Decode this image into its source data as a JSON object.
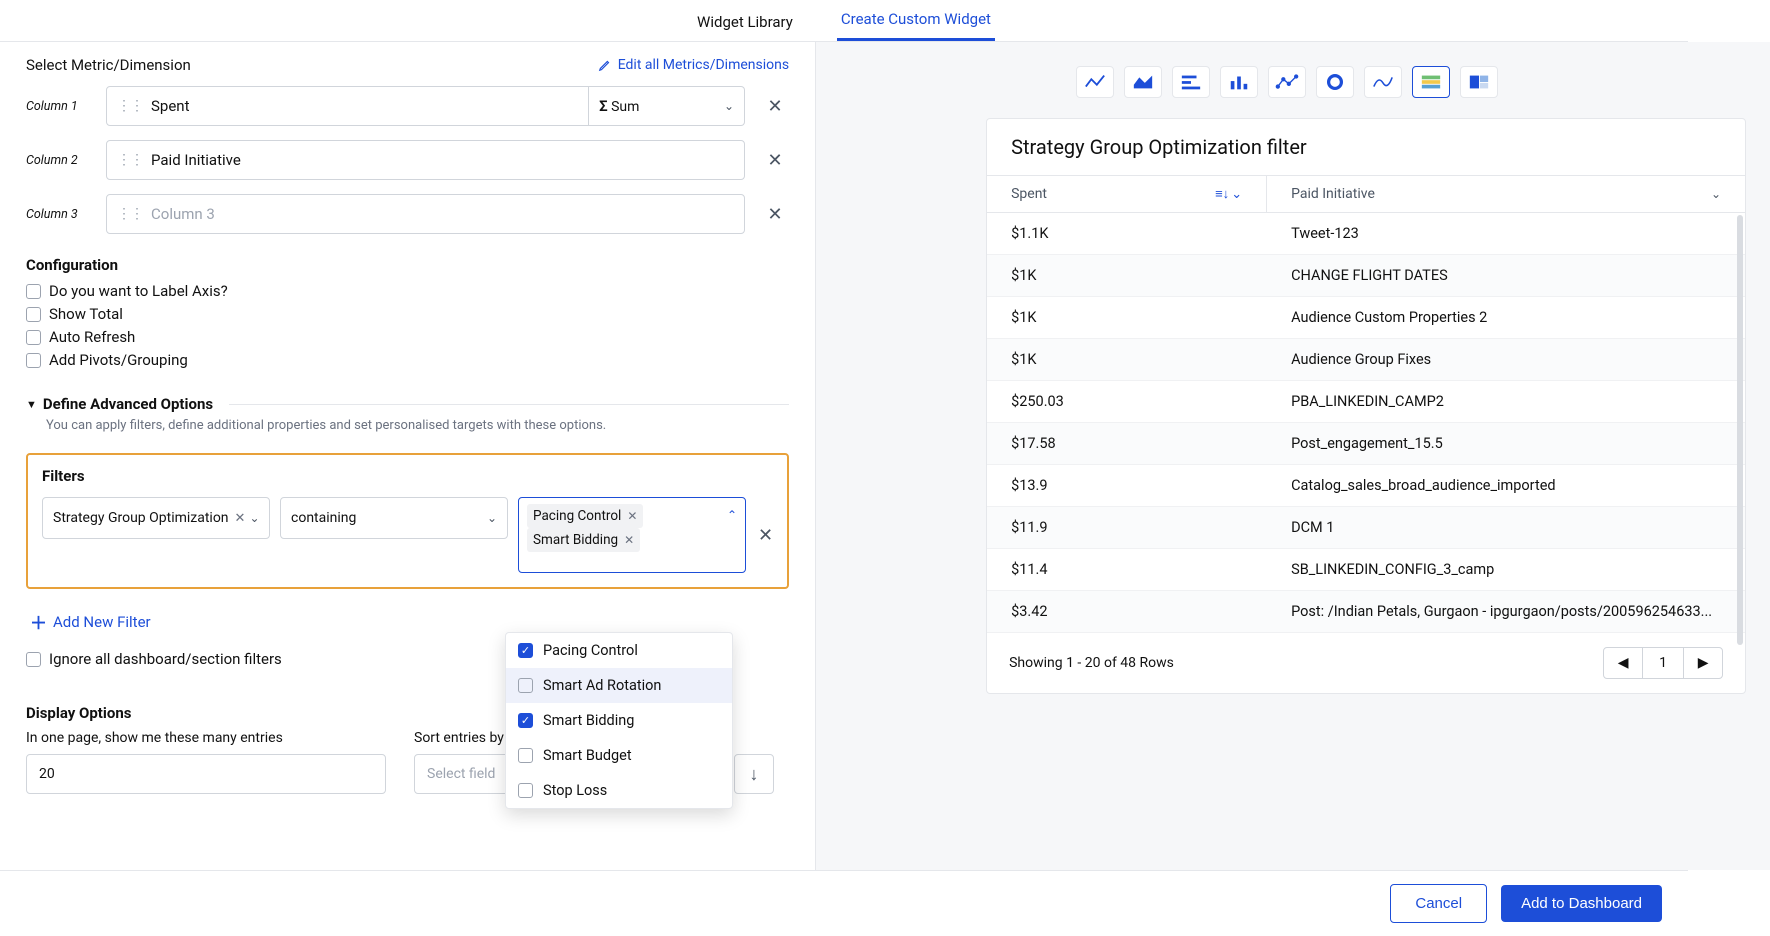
{
  "colors": {
    "primary": "#1d4ed8",
    "highlight_border": "#e8a13a",
    "border": "#e5e7eb",
    "muted": "#6b7280"
  },
  "tabs": {
    "widget_library": "Widget Library",
    "create_custom": "Create Custom Widget"
  },
  "metric_section": {
    "title": "Select Metric/Dimension",
    "edit_all": "Edit all Metrics/Dimensions",
    "columns": [
      {
        "label": "Column 1",
        "value": "Spent",
        "agg": "Sum"
      },
      {
        "label": "Column 2",
        "value": "Paid Initiative",
        "agg": null
      },
      {
        "label": "Column 3",
        "value": "",
        "placeholder": "Column 3",
        "agg": null
      }
    ]
  },
  "configuration": {
    "title": "Configuration",
    "options": [
      "Do you want to Label Axis?",
      "Show Total",
      "Auto Refresh",
      "Add Pivots/Grouping"
    ]
  },
  "advanced": {
    "title": "Define Advanced Options",
    "subtitle": "You can apply filters, define additional properties and set personalised targets with these options."
  },
  "filters": {
    "title": "Filters",
    "dimension": "Strategy Group Optimization",
    "operator": "containing",
    "selected_values": [
      "Pacing Control",
      "Smart Bidding"
    ],
    "dropdown_options": [
      {
        "label": "Pacing Control",
        "checked": true,
        "hover": false
      },
      {
        "label": "Smart Ad Rotation",
        "checked": false,
        "hover": true
      },
      {
        "label": "Smart Bidding",
        "checked": true,
        "hover": false
      },
      {
        "label": "Smart Budget",
        "checked": false,
        "hover": false
      },
      {
        "label": "Stop Loss",
        "checked": false,
        "hover": false
      }
    ],
    "add_new": "Add New Filter",
    "ignore_label": "Ignore all dashboard/section filters"
  },
  "display_options": {
    "title": "Display Options",
    "entries_label": "In one page, show me these many entries",
    "entries_value": "20",
    "sort_label": "Sort entries by",
    "sort_placeholder": "Select field"
  },
  "preview": {
    "title": "Strategy Group Optimization filter",
    "columns": [
      "Spent",
      "Paid Initiative"
    ],
    "rows": [
      [
        "$1.1K",
        "Tweet-123"
      ],
      [
        "$1K",
        "CHANGE FLIGHT DATES"
      ],
      [
        "$1K",
        "Audience Custom Properties 2"
      ],
      [
        "$1K",
        "Audience Group Fixes"
      ],
      [
        "$250.03",
        "PBA_LINKEDIN_CAMP2"
      ],
      [
        "$17.58",
        "Post_engagement_15.5"
      ],
      [
        "$13.9",
        "Catalog_sales_broad_audience_imported"
      ],
      [
        "$11.9",
        "DCM 1"
      ],
      [
        "$11.4",
        "SB_LINKEDIN_CONFIG_3_camp"
      ],
      [
        "$3.42",
        "Post: /Indian Petals, Gurgaon - ipgurgaon/posts/200596254633..."
      ]
    ],
    "pager_text": "Showing 1 - 20 of 48 Rows",
    "pager_current": "1"
  },
  "footer": {
    "cancel": "Cancel",
    "add": "Add to Dashboard"
  }
}
